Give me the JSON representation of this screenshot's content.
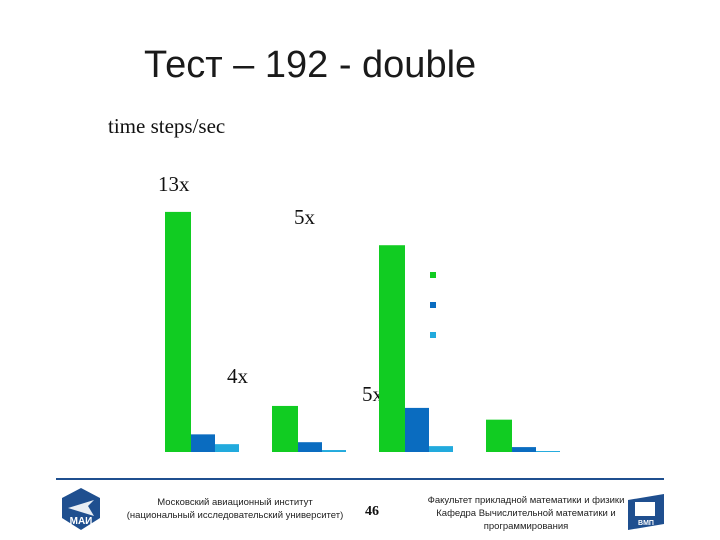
{
  "slide": {
    "title": "Тест – 192 - double",
    "page_number": "46"
  },
  "footer": {
    "left_line1": "Московский авиационный институт",
    "left_line2": "(национальный исследовательский университет)",
    "right_line1": "Факультет прикладной математики и физики",
    "right_line2": "Кафедра Вычислительной математики и",
    "right_line3": "программирования"
  },
  "logos": {
    "left_text": "МАИ",
    "right_text": "ВМП"
  },
  "colors": {
    "series1": "#11cc22",
    "series2": "#0a6cc0",
    "series3": "#22aadd",
    "rule": "#1f4f8f"
  },
  "chart_data": {
    "type": "bar",
    "ylabel": "time steps/sec",
    "categories": [
      "",
      "",
      "",
      ""
    ],
    "series": [
      {
        "values": [
          245,
          47,
          211,
          33
        ]
      },
      {
        "values": [
          18,
          10,
          45,
          5
        ]
      },
      {
        "values": [
          8,
          2,
          6,
          1
        ]
      }
    ],
    "ylim": [
      0,
      250
    ],
    "grid": false,
    "legend_markers": 3,
    "annotations": [
      "13x",
      "5x",
      "4x",
      "5x"
    ]
  }
}
